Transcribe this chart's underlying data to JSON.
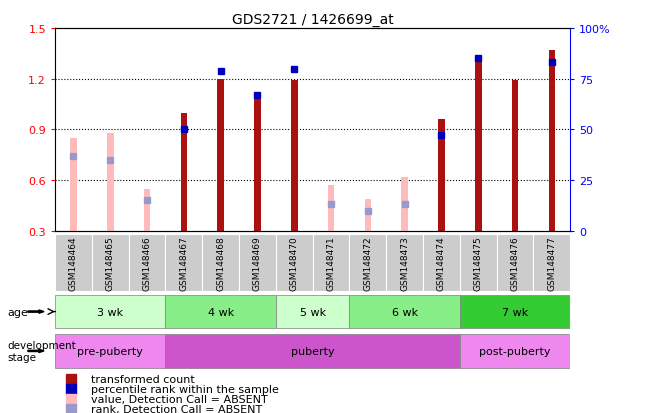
{
  "title": "GDS2721 / 1426699_at",
  "samples": [
    "GSM148464",
    "GSM148465",
    "GSM148466",
    "GSM148467",
    "GSM148468",
    "GSM148469",
    "GSM148470",
    "GSM148471",
    "GSM148472",
    "GSM148473",
    "GSM148474",
    "GSM148475",
    "GSM148476",
    "GSM148477"
  ],
  "transformed_count": [
    null,
    null,
    null,
    1.0,
    1.2,
    1.1,
    1.19,
    null,
    null,
    null,
    0.96,
    1.32,
    1.19,
    1.37
  ],
  "percentile_rank": [
    null,
    null,
    null,
    50,
    79,
    67,
    80,
    null,
    null,
    null,
    47,
    85,
    null,
    83
  ],
  "absent_value": [
    0.85,
    0.88,
    0.55,
    null,
    null,
    null,
    null,
    0.57,
    0.49,
    0.62,
    null,
    null,
    null,
    null
  ],
  "absent_rank": [
    37,
    35,
    15,
    null,
    null,
    null,
    null,
    13,
    10,
    13,
    null,
    null,
    null,
    null
  ],
  "ylim_min": 0.3,
  "ylim_max": 1.5,
  "yticks": [
    0.3,
    0.6,
    0.9,
    1.2,
    1.5
  ],
  "right_yticks": [
    0,
    25,
    50,
    75,
    100
  ],
  "age_groups": [
    {
      "label": "3 wk",
      "start": 0,
      "end": 3,
      "color": "#ccffcc"
    },
    {
      "label": "4 wk",
      "start": 3,
      "end": 6,
      "color": "#88ee88"
    },
    {
      "label": "5 wk",
      "start": 6,
      "end": 8,
      "color": "#ccffcc"
    },
    {
      "label": "6 wk",
      "start": 8,
      "end": 11,
      "color": "#88ee88"
    },
    {
      "label": "7 wk",
      "start": 11,
      "end": 14,
      "color": "#33cc33"
    }
  ],
  "dev_groups": [
    {
      "label": "pre-puberty",
      "start": 0,
      "end": 3,
      "color": "#ee88ee"
    },
    {
      "label": "puberty",
      "start": 3,
      "end": 11,
      "color": "#cc55cc"
    },
    {
      "label": "post-puberty",
      "start": 11,
      "end": 14,
      "color": "#ee88ee"
    }
  ],
  "bar_color_red": "#aa1111",
  "bar_color_pink": "#ffbbbb",
  "dot_color_blue": "#0000bb",
  "dot_color_light_blue": "#9999cc",
  "bar_width": 0.18
}
